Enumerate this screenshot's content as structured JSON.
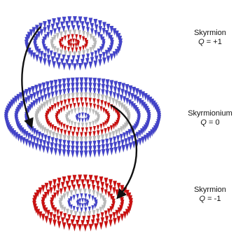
{
  "panels": [
    {
      "name": "Skyrmion",
      "charge_symbol": "Q",
      "charge_value": "= +1"
    },
    {
      "name": "Skyrmionium",
      "charge_symbol": "Q",
      "charge_value": "= 0"
    },
    {
      "name": "Skyrmion",
      "charge_symbol": "Q",
      "charge_value": "= -1"
    }
  ]
}
